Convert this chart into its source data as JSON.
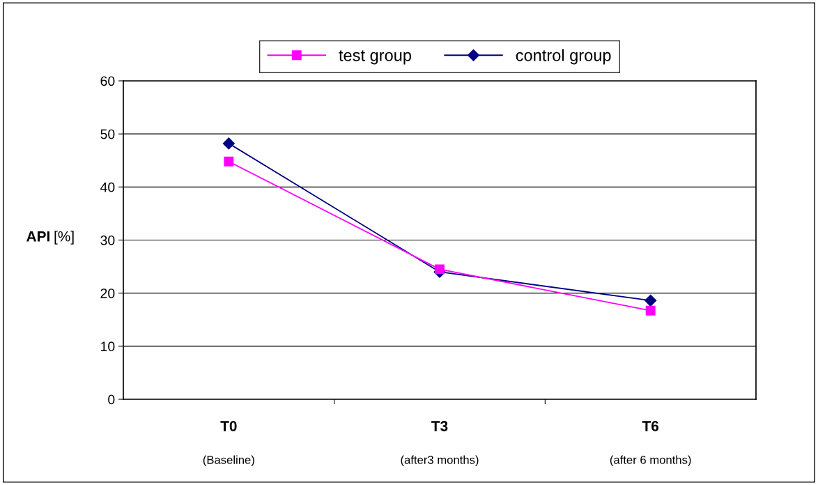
{
  "chart_data": {
    "type": "line",
    "categories": [
      "T0\n(Baseline)",
      "T3\n(after3 months)",
      "T6\n(after 6 months)"
    ],
    "series": [
      {
        "name": "test group",
        "color": "#ff00ff",
        "marker": "square",
        "values": [
          44.8,
          24.5,
          16.7
        ]
      },
      {
        "name": "control group",
        "color": "#000080",
        "marker": "diamond",
        "values": [
          48.2,
          24.0,
          18.6
        ]
      }
    ],
    "ylabel": "API [%]",
    "ylim": [
      0,
      60
    ],
    "yticks": [
      0,
      10,
      20,
      30,
      40,
      50,
      60
    ],
    "grid": "y",
    "legend": "top",
    "line_style": "solid"
  }
}
